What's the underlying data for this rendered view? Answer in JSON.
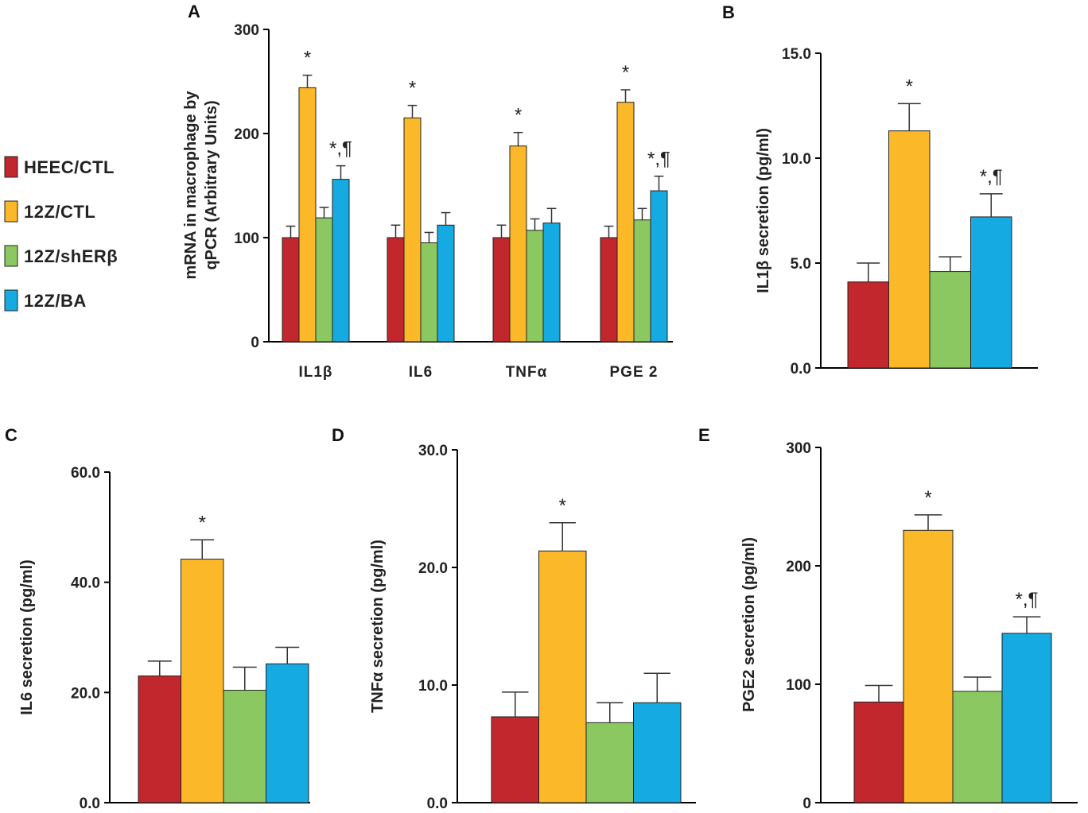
{
  "legend": {
    "items": [
      {
        "label": "HEEC/CTL",
        "color": "#c1272d"
      },
      {
        "label": "12Z/CTL",
        "color": "#fbb829"
      },
      {
        "label": "12Z/shERβ",
        "color": "#8cc862"
      },
      {
        "label": "12Z/BA",
        "color": "#15aae2"
      }
    ]
  },
  "chart_data": [
    {
      "panel": "A",
      "type": "bar",
      "ylabel_line1": "mRNA in macrophage by",
      "ylabel_line2": "qPCR (Arbitrary Units)",
      "ylim": [
        0,
        300
      ],
      "yticks": [
        "0",
        "100",
        "200",
        "300"
      ],
      "ytick_values": [
        0,
        100,
        200,
        300
      ],
      "categories": [
        "IL1β",
        "IL6",
        "TNFα",
        "PGE 2"
      ],
      "series": [
        {
          "name": "HEEC/CTL",
          "values": [
            100,
            100,
            100,
            100
          ],
          "errors": [
            11,
            12,
            12,
            11
          ]
        },
        {
          "name": "12Z/CTL",
          "values": [
            244,
            215,
            188,
            230
          ],
          "errors": [
            12,
            12,
            13,
            12
          ]
        },
        {
          "name": "12Z/shERβ",
          "values": [
            119,
            95,
            107,
            117
          ],
          "errors": [
            10,
            10,
            11,
            11
          ]
        },
        {
          "name": "12Z/BA",
          "values": [
            156,
            112,
            114,
            145
          ],
          "errors": [
            13,
            12,
            14,
            14
          ]
        }
      ],
      "annotations": [
        {
          "category": 0,
          "series": 1,
          "text": "*"
        },
        {
          "category": 0,
          "series": 3,
          "text": "*,¶"
        },
        {
          "category": 1,
          "series": 1,
          "text": "*"
        },
        {
          "category": 2,
          "series": 1,
          "text": "*"
        },
        {
          "category": 3,
          "series": 1,
          "text": "*"
        },
        {
          "category": 3,
          "series": 3,
          "text": "*,¶"
        }
      ]
    },
    {
      "panel": "B",
      "type": "bar",
      "ylabel": "IL1β secretion (pg/ml)",
      "ylim": [
        0,
        15
      ],
      "yticks": [
        "0.0",
        "5.0",
        "10.0",
        "15.0"
      ],
      "ytick_values": [
        0,
        5,
        10,
        15
      ],
      "categories": [
        ""
      ],
      "series": [
        {
          "name": "HEEC/CTL",
          "values": [
            4.1
          ],
          "errors": [
            0.9
          ]
        },
        {
          "name": "12Z/CTL",
          "values": [
            11.3
          ],
          "errors": [
            1.3
          ]
        },
        {
          "name": "12Z/shERβ",
          "values": [
            4.6
          ],
          "errors": [
            0.7
          ]
        },
        {
          "name": "12Z/BA",
          "values": [
            7.2
          ],
          "errors": [
            1.1
          ]
        }
      ],
      "annotations": [
        {
          "category": 0,
          "series": 1,
          "text": "*"
        },
        {
          "category": 0,
          "series": 3,
          "text": "*,¶"
        }
      ]
    },
    {
      "panel": "C",
      "type": "bar",
      "ylabel": "IL6 secretion (pg/ml)",
      "ylim": [
        0,
        60
      ],
      "yticks": [
        "0.0",
        "20.0",
        "40.0",
        "60.0"
      ],
      "ytick_values": [
        0,
        20,
        40,
        60
      ],
      "categories": [
        ""
      ],
      "series": [
        {
          "name": "HEEC/CTL",
          "values": [
            23
          ],
          "errors": [
            2.7
          ]
        },
        {
          "name": "12Z/CTL",
          "values": [
            44.2
          ],
          "errors": [
            3.5
          ]
        },
        {
          "name": "12Z/shERβ",
          "values": [
            20.4
          ],
          "errors": [
            4.2
          ]
        },
        {
          "name": "12Z/BA",
          "values": [
            25.2
          ],
          "errors": [
            3
          ]
        }
      ],
      "annotations": [
        {
          "category": 0,
          "series": 1,
          "text": "*"
        }
      ]
    },
    {
      "panel": "D",
      "type": "bar",
      "ylabel": "TNFα secretion (pg/ml)",
      "ylim": [
        0,
        30
      ],
      "yticks": [
        "0.0",
        "10.0",
        "20.0",
        "30.0"
      ],
      "ytick_values": [
        0,
        10,
        20,
        30
      ],
      "categories": [
        ""
      ],
      "series": [
        {
          "name": "HEEC/CTL",
          "values": [
            7.3
          ],
          "errors": [
            2.1
          ]
        },
        {
          "name": "12Z/CTL",
          "values": [
            21.4
          ],
          "errors": [
            2.4
          ]
        },
        {
          "name": "12Z/shERβ",
          "values": [
            6.8
          ],
          "errors": [
            1.7
          ]
        },
        {
          "name": "12Z/BA",
          "values": [
            8.5
          ],
          "errors": [
            2.5
          ]
        }
      ],
      "annotations": [
        {
          "category": 0,
          "series": 1,
          "text": "*"
        }
      ]
    },
    {
      "panel": "E",
      "type": "bar",
      "ylabel": "PGE2 secretion (pg/ml)",
      "ylim": [
        0,
        300
      ],
      "yticks": [
        "0",
        "100",
        "200",
        "300"
      ],
      "ytick_values": [
        0,
        100,
        200,
        300
      ],
      "categories": [
        ""
      ],
      "series": [
        {
          "name": "HEEC/CTL",
          "values": [
            85
          ],
          "errors": [
            14
          ]
        },
        {
          "name": "12Z/CTL",
          "values": [
            230
          ],
          "errors": [
            13
          ]
        },
        {
          "name": "12Z/shERβ",
          "values": [
            94
          ],
          "errors": [
            12
          ]
        },
        {
          "name": "12Z/BA",
          "values": [
            143
          ],
          "errors": [
            14
          ]
        }
      ],
      "annotations": [
        {
          "category": 0,
          "series": 1,
          "text": "*"
        },
        {
          "category": 0,
          "series": 3,
          "text": "*,¶"
        }
      ]
    }
  ]
}
